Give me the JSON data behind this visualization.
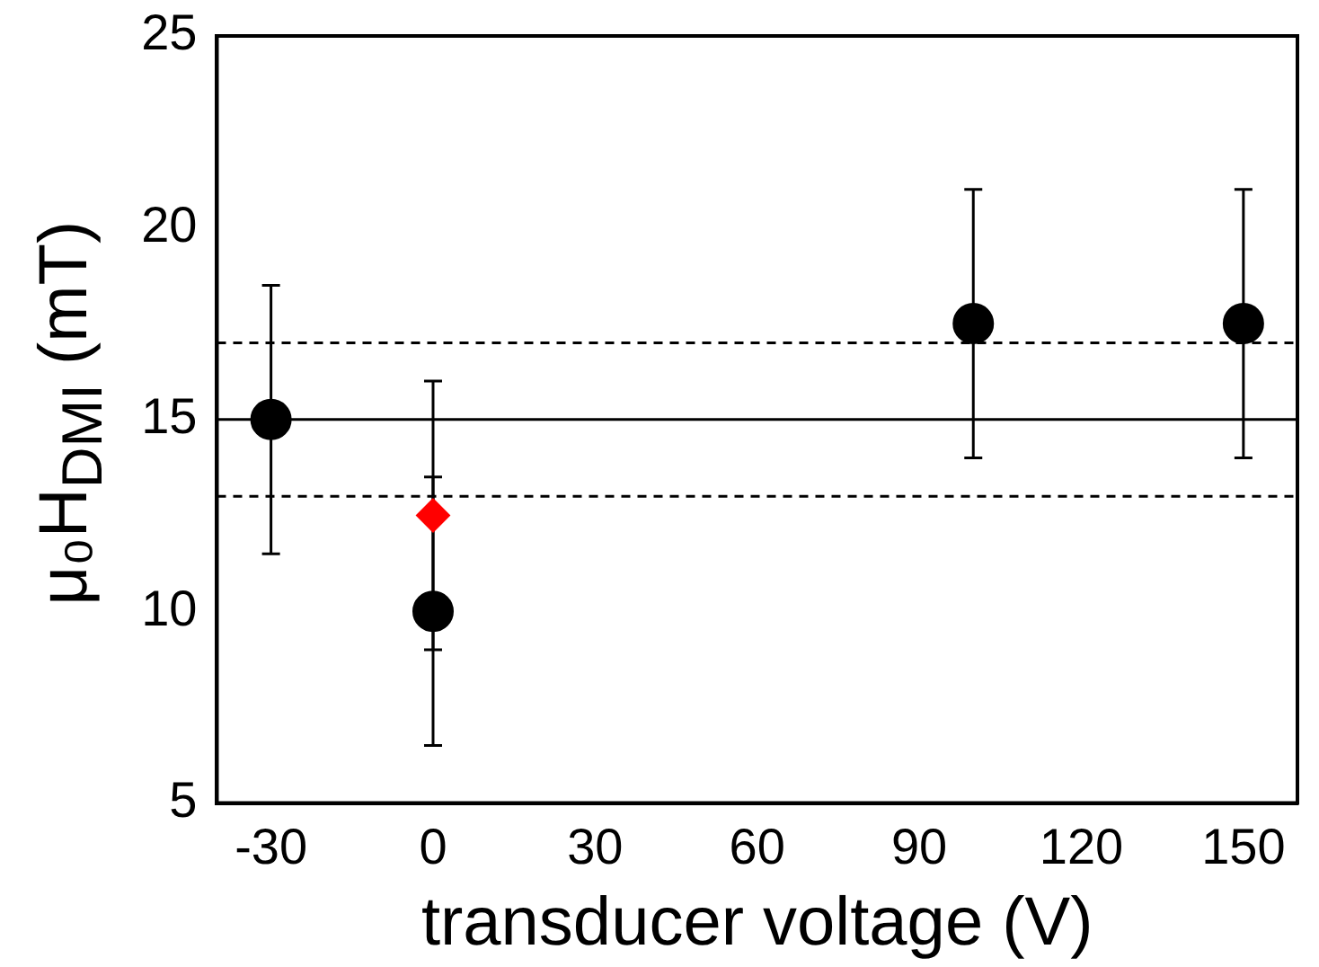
{
  "chart_data": {
    "type": "scatter",
    "xlabel": "transducer voltage (V)",
    "ylabel": "μ₀H$_{DMI}$ (mT)",
    "xlim": [
      -40,
      160
    ],
    "xticks": [
      -30,
      0,
      30,
      60,
      90,
      120,
      150
    ],
    "ylim": [
      5,
      25
    ],
    "yticks": [
      5,
      10,
      15,
      20,
      25
    ],
    "grid": false,
    "legend": false,
    "series": [
      {
        "color": "#000000",
        "marker": "circle",
        "x": [
          -30,
          0,
          100,
          150
        ],
        "values": [
          15,
          10,
          17.5,
          17.5
        ],
        "errors": [
          [
            11.5,
            18.5
          ],
          [
            6.5,
            13.5
          ],
          [
            14,
            21
          ],
          [
            14,
            21
          ]
        ]
      },
      {
        "color": "#ff0000",
        "marker": "diamond",
        "x": [
          0
        ],
        "values": [
          12.5
        ],
        "errors": [
          [
            9,
            16
          ]
        ]
      }
    ],
    "ref_lines": [
      {
        "axis": "y",
        "value": 15,
        "line_style": "solid",
        "color": "#000000"
      },
      {
        "axis": "y",
        "value": 17,
        "line_style": "dashed",
        "color": "#000000"
      },
      {
        "axis": "y",
        "value": 13,
        "line_style": "dashed",
        "color": "#000000"
      }
    ]
  }
}
